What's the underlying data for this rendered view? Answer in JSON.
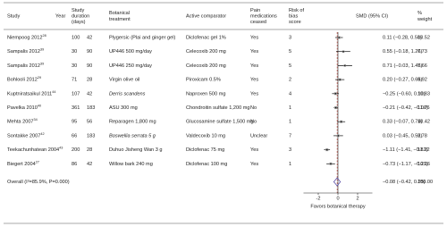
{
  "headers": {
    "study": "Study",
    "year": "Year",
    "duration": [
      "Study",
      "duration",
      "(days)"
    ],
    "treatment": [
      "Botanical",
      "treatment"
    ],
    "comparator": "Active comparator",
    "pain": [
      "Pain",
      "medications",
      "ceased"
    ],
    "risk": [
      "Risk of",
      "bias",
      "score"
    ],
    "smd": "SMD (95% CI)",
    "weight": [
      "%",
      "weight"
    ]
  },
  "rows": [
    {
      "study": "Niempoog 2012",
      "ref": "28",
      "n": "100",
      "duration": "42",
      "treatment": "Plygersic (Plai and ginger gel)",
      "comparator": "Diclofenac gel 1%",
      "pain": "Yes",
      "risk": "3",
      "smd_ci": "0.11 (−0.28, 0.50)",
      "smd": 0.11,
      "ci": [
        -0.28,
        0.5
      ],
      "weight": "10.52"
    },
    {
      "study": "Sampalis 2012",
      "ref": "39",
      "n": "30",
      "duration": "90",
      "treatment": "UP446 500 mg/day",
      "comparator": "Celecoxib 200 mg",
      "pain": "Yes",
      "risk": "5",
      "smd_ci": "0.55 (−0.18, 1.26)",
      "smd": 0.55,
      "ci": [
        -0.18,
        1.26
      ],
      "weight": "7.73"
    },
    {
      "study": "Sampalis 2012",
      "ref": "39",
      "n": "30",
      "duration": "90",
      "treatment": "UP446 250 mg/day",
      "comparator": "Celecoxib 200 mg",
      "pain": "Yes",
      "risk": "5",
      "smd_ci": "0.71 (−0.03, 1.45)",
      "smd": 0.71,
      "ci": [
        -0.03,
        1.45
      ],
      "weight": "7.66"
    },
    {
      "study": "Bohlooli 2012",
      "ref": "29",
      "n": "71",
      "duration": "28",
      "treatment": "Virgin olive oil",
      "comparator": "Piroxicam 0.5%",
      "pain": "Yes",
      "risk": "2",
      "smd_ci": "0.20 (−0.27, 0.66)",
      "smd": 0.2,
      "ci": [
        -0.27,
        0.66
      ],
      "weight": "9.92"
    },
    {
      "study": "Kuptniratsaikul 2011",
      "ref": "44",
      "n": "107",
      "duration": "42",
      "treatment": "Derris scandens",
      "italic": true,
      "comparator": "Naproxen 500 mg",
      "pain": "Yes",
      "risk": "4",
      "smd_ci": "−0.25 (−0.60, 0.10)",
      "smd": -0.25,
      "ci": [
        -0.6,
        0.1
      ],
      "weight": "10.83"
    },
    {
      "study": "Pavelka 2010",
      "ref": "40",
      "n": "361",
      "duration": "183",
      "treatment": "ASU 300 mg",
      "comparator": "Chondroitin sulfate 1,200 mg",
      "pain": "No",
      "risk": "1",
      "smd_ci": "−0.21 (−0.42, −0.00)",
      "smd": -0.21,
      "ci": [
        -0.42,
        0
      ],
      "weight": "11.76"
    },
    {
      "study": "Mehta 2007",
      "ref": "34",
      "n": "95",
      "duration": "56",
      "treatment": "Reparagen 1,800 mg",
      "comparator": "Glucosamine sulfate 1,500 mg",
      "pain": "No",
      "risk": "1",
      "smd_ci": "0.33 (−0.07, 0.74)",
      "smd": 0.33,
      "ci": [
        -0.07,
        0.74
      ],
      "weight": "10.42"
    },
    {
      "study": "Sontakke 2007",
      "ref": "42",
      "n": "66",
      "duration": "183",
      "treatment": "Boswellia serrata 5 g",
      "italic": true,
      "comparator": "Valdecoxib 10 mg",
      "pain": "Unclear",
      "risk": "7",
      "smd_ci": "0.03 (−0.45, 0.52)",
      "smd": 0.03,
      "ci": [
        -0.45,
        0.52
      ],
      "weight": "9.78"
    },
    {
      "study": "Teekachunhatean 2004",
      "ref": "43",
      "n": "200",
      "duration": "28",
      "treatment": "Duhuo Jisheng Wan 3 g",
      "comparator": "Diclofenac 75 mg",
      "pain": "Yes",
      "risk": "3",
      "smd_ci": "−1.11 (−1.41, −0.81)",
      "smd": -1.11,
      "ci": [
        -1.41,
        -0.81
      ],
      "weight": "11.22"
    },
    {
      "study": "Biegert 2004",
      "ref": "27",
      "n": "86",
      "duration": "42",
      "treatment": "Willow bark 240 mg",
      "comparator": "Diclofenac 100 mg",
      "pain": "Yes",
      "risk": "1",
      "smd_ci": "−0.73 (−1.17, −0.29)",
      "smd": -0.73,
      "ci": [
        -1.17,
        -0.29
      ],
      "weight": "10.16"
    }
  ],
  "overall": {
    "label": "Overall (I²=85.9%, P=0.000)",
    "smd_ci": "−0.08 (−0.42, 0.25)",
    "smd": -0.08,
    "ci": [
      -0.42,
      0.25
    ],
    "weight": "100.00"
  },
  "axis": {
    "xlim": [
      -3.5,
      3.5
    ],
    "xticks": [
      -2,
      0,
      2
    ],
    "label": "Favors botanical therapy"
  }
}
